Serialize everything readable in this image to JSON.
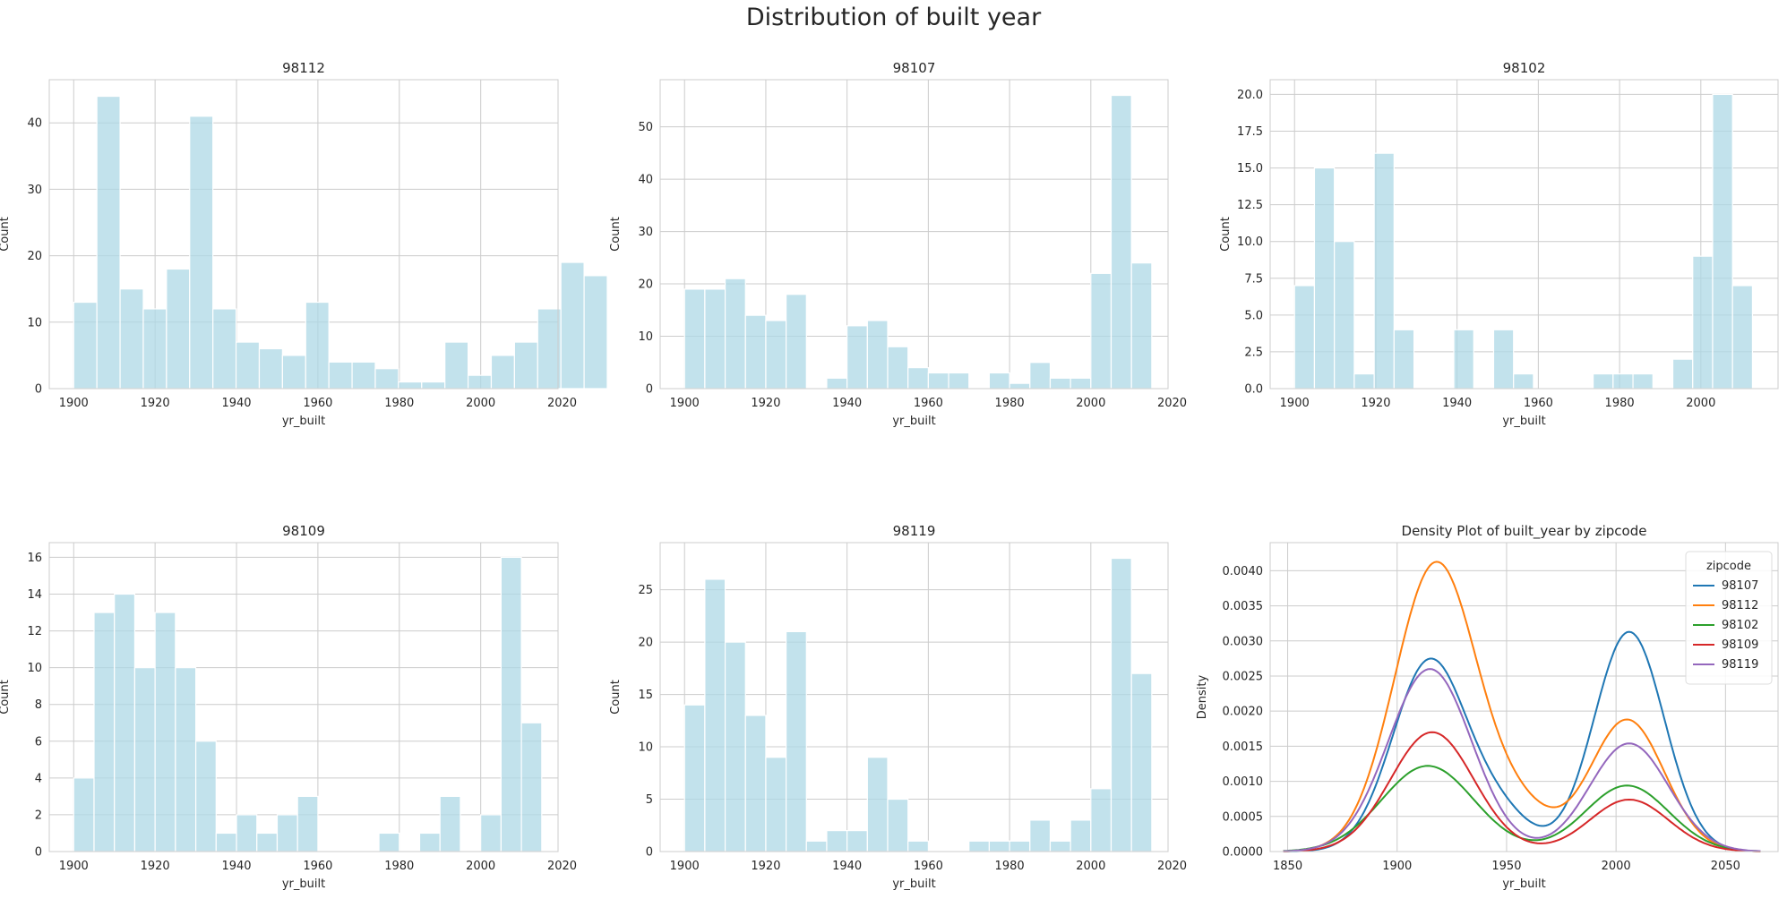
{
  "figure": {
    "suptitle": "Distribution of built year"
  },
  "chart_data": [
    {
      "type": "bar",
      "title": "98112",
      "xlabel": "yr_built",
      "ylabel": "Count",
      "xlim": [
        1894,
        2019
      ],
      "ylim": [
        0,
        46.5
      ],
      "xticks": [
        1900,
        1920,
        1940,
        1960,
        1980,
        2000,
        2020
      ],
      "yticks": [
        0,
        10,
        20,
        30,
        40
      ],
      "grid": true,
      "bin_start": 1900,
      "bin_width": 5.7,
      "values": [
        13,
        44,
        15,
        12,
        18,
        41,
        12,
        7,
        6,
        5,
        13,
        4,
        4,
        3,
        1,
        1,
        7,
        2,
        5,
        7,
        12,
        19,
        17
      ],
      "color": "#add8e6"
    },
    {
      "type": "bar",
      "title": "98107",
      "xlabel": "yr_built",
      "ylabel": "Count",
      "xlim": [
        1894,
        2019
      ],
      "ylim": [
        0,
        59
      ],
      "xticks": [
        1900,
        1920,
        1940,
        1960,
        1980,
        2000,
        2020
      ],
      "yticks": [
        0,
        10,
        20,
        30,
        40,
        50
      ],
      "grid": true,
      "bin_start": 1900,
      "bin_width": 5.0,
      "values": [
        19,
        19,
        21,
        14,
        13,
        18,
        0,
        2,
        12,
        13,
        8,
        4,
        3,
        3,
        0,
        3,
        1,
        5,
        2,
        2,
        22,
        56,
        24
      ],
      "color": "#add8e6"
    },
    {
      "type": "bar",
      "title": "98102",
      "xlabel": "yr_built",
      "ylabel": "Count",
      "xlim": [
        1894,
        2019
      ],
      "ylim": [
        0,
        21
      ],
      "xticks": [
        1900,
        1920,
        1940,
        1960,
        1980,
        2000
      ],
      "yticks": [
        0,
        2.5,
        5.0,
        7.5,
        10.0,
        12.5,
        15.0,
        17.5,
        20.0
      ],
      "grid": true,
      "bin_start": 1900,
      "bin_width": 4.9,
      "values": [
        7,
        15,
        10,
        1,
        16,
        4,
        0,
        0,
        4,
        0,
        4,
        1,
        0,
        0,
        0,
        1,
        1,
        1,
        0,
        2,
        9,
        20,
        7
      ],
      "color": "#add8e6"
    },
    {
      "type": "bar",
      "title": "98109",
      "xlabel": "yr_built",
      "ylabel": "Count",
      "xlim": [
        1894,
        2019
      ],
      "ylim": [
        0,
        16.8
      ],
      "xticks": [
        1900,
        1920,
        1940,
        1960,
        1980,
        2000,
        2020
      ],
      "yticks": [
        0,
        2,
        4,
        6,
        8,
        10,
        12,
        14,
        16
      ],
      "grid": true,
      "bin_start": 1900,
      "bin_width": 5.0,
      "values": [
        4,
        13,
        14,
        10,
        13,
        10,
        6,
        1,
        2,
        1,
        2,
        3,
        0,
        0,
        0,
        1,
        0,
        1,
        3,
        0,
        2,
        16,
        7
      ],
      "color": "#add8e6"
    },
    {
      "type": "bar",
      "title": "98119",
      "xlabel": "yr_built",
      "ylabel": "Count",
      "xlim": [
        1894,
        2019
      ],
      "ylim": [
        0,
        29.5
      ],
      "xticks": [
        1900,
        1920,
        1940,
        1960,
        1980,
        2000,
        2020
      ],
      "yticks": [
        0,
        5,
        10,
        15,
        20,
        25
      ],
      "grid": true,
      "bin_start": 1900,
      "bin_width": 5.0,
      "values": [
        14,
        26,
        20,
        13,
        9,
        21,
        1,
        2,
        2,
        9,
        5,
        1,
        0,
        0,
        1,
        1,
        1,
        3,
        1,
        3,
        6,
        28,
        17
      ],
      "color": "#add8e6"
    },
    {
      "type": "line",
      "title": "Density Plot of built_year by zipcode",
      "xlabel": "yr_built",
      "ylabel": "Density",
      "xlim": [
        1842,
        2074
      ],
      "ylim": [
        0,
        0.0044
      ],
      "xticks": [
        1850,
        1900,
        1950,
        2000,
        2050
      ],
      "yticks": [
        "0.0000",
        "0.0005",
        "0.0010",
        "0.0015",
        "0.0020",
        "0.0025",
        "0.0030",
        "0.0035",
        "0.0040"
      ],
      "grid": true,
      "legend": {
        "title": "zipcode",
        "placement": "top-right"
      },
      "x_range": [
        1848,
        2066
      ],
      "series": [
        {
          "name": "98107",
          "color": "#1f77b4",
          "peaks": [
            {
              "mu": 1915,
              "sigma": 17,
              "amp": 0.00272
            },
            {
              "mu": 1948,
              "sigma": 14,
              "amp": 0.00045
            },
            {
              "mu": 2006,
              "sigma": 16,
              "amp": 0.00313
            }
          ]
        },
        {
          "name": "98112",
          "color": "#ff7f0e",
          "peaks": [
            {
              "mu": 1918,
              "sigma": 19,
              "amp": 0.00412
            },
            {
              "mu": 1958,
              "sigma": 14,
              "amp": 0.00045
            },
            {
              "mu": 2005,
              "sigma": 17,
              "amp": 0.00188
            }
          ]
        },
        {
          "name": "98102",
          "color": "#2ca02c",
          "peaks": [
            {
              "mu": 1914,
              "sigma": 21,
              "amp": 0.00122
            },
            {
              "mu": 2005,
              "sigma": 19,
              "amp": 0.00094
            }
          ]
        },
        {
          "name": "98109",
          "color": "#d62728",
          "peaks": [
            {
              "mu": 1916,
              "sigma": 19,
              "amp": 0.0017
            },
            {
              "mu": 2006,
              "sigma": 18,
              "amp": 0.00074
            }
          ]
        },
        {
          "name": "98119",
          "color": "#9467bd",
          "peaks": [
            {
              "mu": 1915,
              "sigma": 19,
              "amp": 0.0026
            },
            {
              "mu": 2006,
              "sigma": 18,
              "amp": 0.00154
            }
          ]
        }
      ]
    }
  ]
}
